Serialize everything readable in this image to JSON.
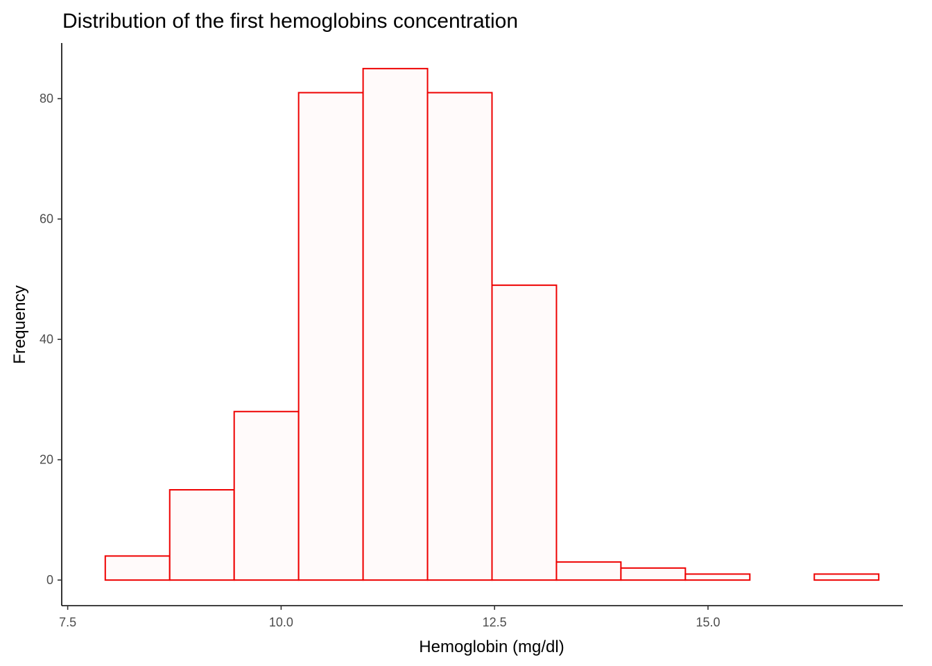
{
  "chart_data": {
    "type": "bar",
    "title": "Distribution of the first hemoglobins concentration",
    "xlabel": "Hemoglobin (mg/dl)",
    "ylabel": "Frequency",
    "bin_edges": [
      7.94,
      8.695,
      9.45,
      10.205,
      10.96,
      11.715,
      12.47,
      13.225,
      13.98,
      14.735,
      15.49,
      16.245,
      17.0
    ],
    "values": [
      4,
      15,
      28,
      81,
      85,
      81,
      49,
      3,
      2,
      1,
      0,
      1
    ],
    "xlim": [
      7.43,
      17.51
    ],
    "ylim": [
      -4.25,
      89.25
    ],
    "x_ticks": [
      7.5,
      10.0,
      12.5,
      15.0
    ],
    "x_tick_labels": [
      "7.5",
      "10.0",
      "12.5",
      "15.0"
    ],
    "y_ticks": [
      0,
      20,
      40,
      60,
      80
    ],
    "y_tick_labels": [
      "0",
      "20",
      "40",
      "60",
      "80"
    ],
    "grid": false,
    "legend": "none",
    "bar_fill": "#fffafa",
    "bar_stroke": "#ee0000"
  }
}
